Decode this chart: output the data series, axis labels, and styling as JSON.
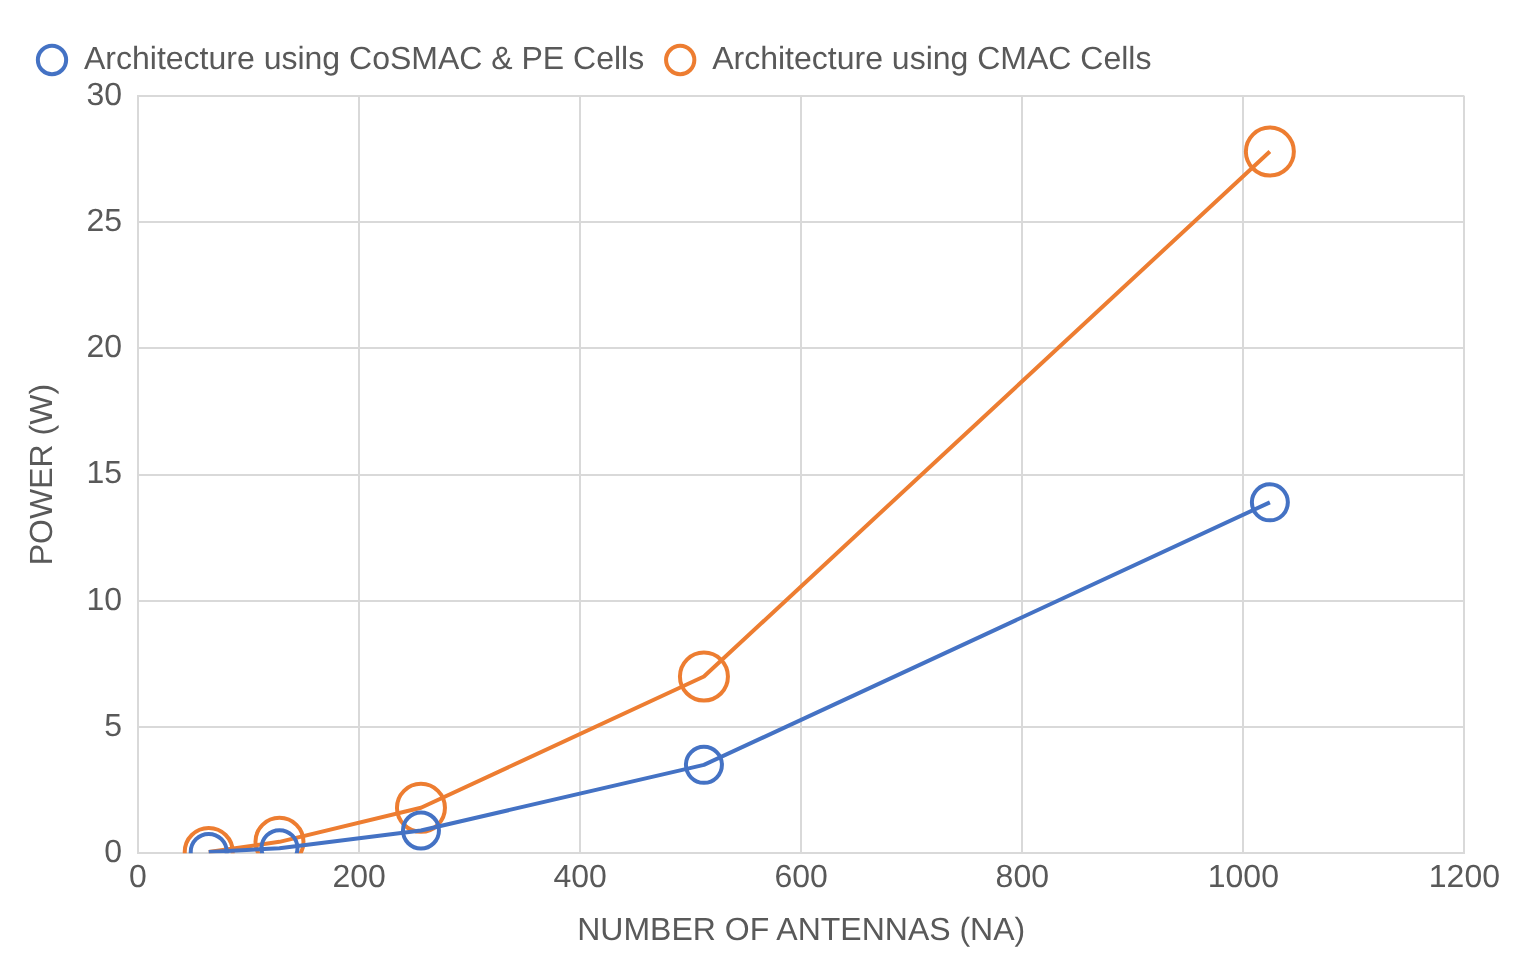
{
  "chart_data": {
    "type": "line",
    "xlabel": "NUMBER OF ANTENNAS (NA)",
    "ylabel": "POWER (W)",
    "x": [
      64,
      128,
      256,
      512,
      1024
    ],
    "series": [
      {
        "name": "Architecture using CoSMAC & PE Cells",
        "color": "#4472c4",
        "values": [
          0.05,
          0.2,
          0.9,
          3.5,
          13.9
        ]
      },
      {
        "name": "Architecture using CMAC Cells",
        "color": "#ed7d31",
        "values": [
          0.05,
          0.45,
          1.8,
          7,
          27.8
        ]
      }
    ],
    "xlim": [
      0,
      1200
    ],
    "xticks": [
      0,
      200,
      400,
      600,
      800,
      1000,
      1200
    ],
    "ylim": [
      0,
      30
    ],
    "yticks": [
      0,
      5,
      10,
      15,
      20,
      25,
      30
    ],
    "grid": true,
    "legend": "top left",
    "marker": "circle",
    "line_style": "solid"
  }
}
